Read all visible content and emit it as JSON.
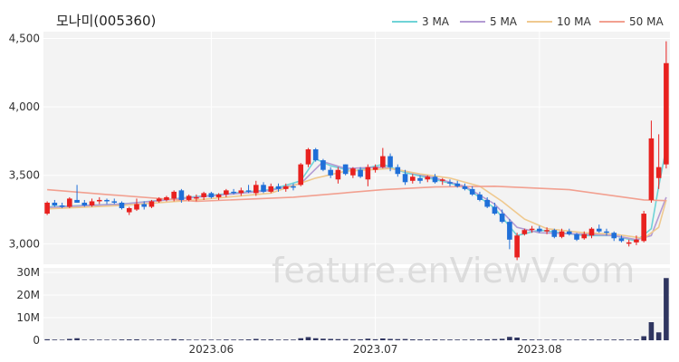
{
  "chart_data": {
    "type": "candlestick",
    "title": "모나미(005360)",
    "watermark": "feature.enViewV.com",
    "legend_position": "top-right",
    "colors": {
      "up": "#e8211f",
      "down": "#1f6fd8",
      "volume": "#2f3560",
      "ma3": "#6fd3d7",
      "ma5": "#b39bd3",
      "ma10": "#efc98f",
      "ma50": "#f2a090",
      "panel_bg": "#f3f3f3",
      "grid": "#ffffff"
    },
    "price_axis": {
      "min": 2850,
      "max": 4550,
      "ticks": [
        3000,
        3500,
        4000,
        4500
      ],
      "tick_labels": [
        "3,000",
        "3,500",
        "4,000",
        "4,500"
      ]
    },
    "volume_axis": {
      "min": 0,
      "max": 32000000,
      "ticks": [
        0,
        10000000,
        20000000,
        30000000
      ],
      "tick_labels": [
        "0",
        "10M",
        "20M",
        "30M"
      ]
    },
    "x_labels": [
      {
        "index": 22,
        "label": "2023.06"
      },
      {
        "index": 44,
        "label": "2023.07"
      },
      {
        "index": 66,
        "label": "2023.08"
      }
    ],
    "series": [
      {
        "name": "3 MA",
        "key": "ma3"
      },
      {
        "name": "5 MA",
        "key": "ma5"
      },
      {
        "name": "10 MA",
        "key": "ma10"
      },
      {
        "name": "50 MA",
        "key": "ma50"
      }
    ],
    "candles": [
      [
        3220,
        3310,
        3210,
        3300
      ],
      [
        3300,
        3320,
        3270,
        3280
      ],
      [
        3280,
        3300,
        3260,
        3270
      ],
      [
        3270,
        3340,
        3260,
        3330
      ],
      [
        3320,
        3430,
        3300,
        3300
      ],
      [
        3300,
        3320,
        3270,
        3280
      ],
      [
        3280,
        3330,
        3270,
        3310
      ],
      [
        3310,
        3340,
        3290,
        3320
      ],
      [
        3320,
        3330,
        3290,
        3310
      ],
      [
        3310,
        3330,
        3290,
        3300
      ],
      [
        3300,
        3310,
        3250,
        3260
      ],
      [
        3230,
        3270,
        3210,
        3260
      ],
      [
        3250,
        3330,
        3240,
        3290
      ],
      [
        3290,
        3310,
        3250,
        3270
      ],
      [
        3270,
        3320,
        3260,
        3310
      ],
      [
        3310,
        3340,
        3300,
        3330
      ],
      [
        3320,
        3350,
        3310,
        3340
      ],
      [
        3330,
        3390,
        3310,
        3380
      ],
      [
        3390,
        3400,
        3300,
        3320
      ],
      [
        3320,
        3360,
        3310,
        3350
      ],
      [
        3330,
        3360,
        3310,
        3340
      ],
      [
        3340,
        3380,
        3320,
        3370
      ],
      [
        3370,
        3380,
        3330,
        3340
      ],
      [
        3340,
        3370,
        3320,
        3360
      ],
      [
        3360,
        3400,
        3340,
        3390
      ],
      [
        3380,
        3400,
        3360,
        3370
      ],
      [
        3370,
        3410,
        3350,
        3390
      ],
      [
        3390,
        3430,
        3370,
        3380
      ],
      [
        3370,
        3460,
        3350,
        3430
      ],
      [
        3430,
        3450,
        3370,
        3380
      ],
      [
        3380,
        3440,
        3370,
        3420
      ],
      [
        3420,
        3440,
        3380,
        3400
      ],
      [
        3400,
        3440,
        3380,
        3420
      ],
      [
        3420,
        3440,
        3390,
        3410
      ],
      [
        3430,
        3590,
        3420,
        3580
      ],
      [
        3580,
        3700,
        3560,
        3690
      ],
      [
        3690,
        3700,
        3600,
        3610
      ],
      [
        3610,
        3620,
        3530,
        3540
      ],
      [
        3540,
        3560,
        3480,
        3500
      ],
      [
        3470,
        3560,
        3440,
        3540
      ],
      [
        3580,
        3580,
        3500,
        3510
      ],
      [
        3500,
        3560,
        3480,
        3550
      ],
      [
        3540,
        3560,
        3480,
        3490
      ],
      [
        3470,
        3580,
        3420,
        3560
      ],
      [
        3540,
        3580,
        3520,
        3560
      ],
      [
        3560,
        3700,
        3550,
        3640
      ],
      [
        3640,
        3660,
        3530,
        3560
      ],
      [
        3560,
        3580,
        3490,
        3510
      ],
      [
        3510,
        3540,
        3430,
        3450
      ],
      [
        3460,
        3510,
        3440,
        3490
      ],
      [
        3480,
        3500,
        3440,
        3460
      ],
      [
        3470,
        3500,
        3450,
        3490
      ],
      [
        3490,
        3510,
        3440,
        3450
      ],
      [
        3460,
        3480,
        3430,
        3470
      ],
      [
        3450,
        3470,
        3420,
        3440
      ],
      [
        3440,
        3460,
        3410,
        3420
      ],
      [
        3420,
        3440,
        3390,
        3400
      ],
      [
        3400,
        3420,
        3350,
        3360
      ],
      [
        3360,
        3380,
        3310,
        3320
      ],
      [
        3320,
        3340,
        3260,
        3270
      ],
      [
        3270,
        3300,
        3210,
        3220
      ],
      [
        3220,
        3250,
        3150,
        3160
      ],
      [
        3160,
        3180,
        2960,
        3030
      ],
      [
        2900,
        3080,
        2880,
        3060
      ],
      [
        3070,
        3110,
        3060,
        3100
      ],
      [
        3100,
        3130,
        3080,
        3110
      ],
      [
        3110,
        3130,
        3080,
        3090
      ],
      [
        3090,
        3120,
        3070,
        3100
      ],
      [
        3100,
        3110,
        3040,
        3050
      ],
      [
        3050,
        3110,
        3040,
        3090
      ],
      [
        3090,
        3110,
        3060,
        3070
      ],
      [
        3070,
        3080,
        3020,
        3030
      ],
      [
        3040,
        3090,
        3030,
        3070
      ],
      [
        3060,
        3120,
        3040,
        3110
      ],
      [
        3110,
        3140,
        3080,
        3090
      ],
      [
        3090,
        3110,
        3060,
        3080
      ],
      [
        3080,
        3090,
        3020,
        3040
      ],
      [
        3040,
        3060,
        3010,
        3020
      ],
      [
        3000,
        3030,
        2980,
        3010
      ],
      [
        3010,
        3060,
        2990,
        3030
      ],
      [
        3020,
        3240,
        3010,
        3220
      ],
      [
        3320,
        3900,
        3300,
        3770
      ],
      [
        3480,
        3800,
        3400,
        3560
      ],
      [
        3580,
        4480,
        3550,
        4320
      ]
    ],
    "volumes": [
      450000,
      300000,
      250000,
      600000,
      900000,
      250000,
      300000,
      280000,
      260000,
      240000,
      350000,
      380000,
      420000,
      250000,
      300000,
      320000,
      280000,
      500000,
      400000,
      280000,
      260000,
      300000,
      280000,
      260000,
      350000,
      300000,
      320000,
      380000,
      600000,
      350000,
      420000,
      300000,
      320000,
      300000,
      900000,
      1400000,
      900000,
      700000,
      600000,
      500000,
      500000,
      450000,
      420000,
      700000,
      450000,
      800000,
      600000,
      500000,
      550000,
      400000,
      380000,
      350000,
      380000,
      320000,
      330000,
      310000,
      300000,
      350000,
      380000,
      420000,
      500000,
      650000,
      1500000,
      1200000,
      400000,
      350000,
      320000,
      300000,
      320000,
      300000,
      280000,
      320000,
      300000,
      350000,
      330000,
      300000,
      320000,
      350000,
      300000,
      400000,
      1800000,
      8000000,
      3500000,
      27500000
    ],
    "ma3": [
      [
        0,
        3270
      ],
      [
        10,
        3290
      ],
      [
        20,
        3345
      ],
      [
        30,
        3395
      ],
      [
        34,
        3460
      ],
      [
        36,
        3620
      ],
      [
        38,
        3570
      ],
      [
        41,
        3530
      ],
      [
        45,
        3580
      ],
      [
        48,
        3520
      ],
      [
        52,
        3470
      ],
      [
        56,
        3415
      ],
      [
        60,
        3260
      ],
      [
        63,
        3060
      ],
      [
        66,
        3100
      ],
      [
        72,
        3060
      ],
      [
        76,
        3060
      ],
      [
        79,
        3020
      ],
      [
        81,
        3110
      ],
      [
        82,
        3420
      ],
      [
        83,
        3700
      ]
    ],
    "ma5": [
      [
        0,
        3265
      ],
      [
        10,
        3290
      ],
      [
        20,
        3340
      ],
      [
        30,
        3390
      ],
      [
        34,
        3440
      ],
      [
        37,
        3600
      ],
      [
        40,
        3550
      ],
      [
        45,
        3560
      ],
      [
        48,
        3530
      ],
      [
        52,
        3480
      ],
      [
        56,
        3420
      ],
      [
        60,
        3290
      ],
      [
        63,
        3120
      ],
      [
        66,
        3080
      ],
      [
        72,
        3070
      ],
      [
        76,
        3060
      ],
      [
        79,
        3030
      ],
      [
        81,
        3060
      ],
      [
        83,
        3340
      ]
    ],
    "ma10": [
      [
        0,
        3255
      ],
      [
        10,
        3280
      ],
      [
        20,
        3320
      ],
      [
        30,
        3370
      ],
      [
        36,
        3480
      ],
      [
        40,
        3530
      ],
      [
        46,
        3550
      ],
      [
        50,
        3510
      ],
      [
        54,
        3480
      ],
      [
        58,
        3420
      ],
      [
        61,
        3310
      ],
      [
        64,
        3180
      ],
      [
        67,
        3110
      ],
      [
        72,
        3080
      ],
      [
        76,
        3070
      ],
      [
        80,
        3040
      ],
      [
        82,
        3120
      ],
      [
        83,
        3320
      ]
    ],
    "ma50": [
      [
        0,
        3395
      ],
      [
        8,
        3360
      ],
      [
        20,
        3310
      ],
      [
        33,
        3340
      ],
      [
        45,
        3395
      ],
      [
        52,
        3415
      ],
      [
        60,
        3420
      ],
      [
        70,
        3395
      ],
      [
        80,
        3320
      ],
      [
        83,
        3315
      ]
    ]
  }
}
